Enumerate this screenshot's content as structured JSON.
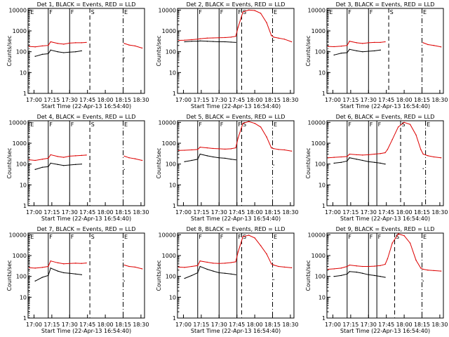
{
  "window": {
    "background": "#ffffff"
  },
  "common": {
    "ylabel": "Counts/sec",
    "xlabel": "Start Time (22-Apr-13 16:54:40)",
    "x_ticks": [
      "17:00",
      "17:15",
      "17:30",
      "17:45",
      "18:00",
      "18:15",
      "18:30"
    ],
    "y_tick_labels": [
      "1",
      "10",
      "100",
      "1000",
      "10000"
    ],
    "colors": {
      "events": "#000000",
      "lld": "#dd0000",
      "marker": "#000000"
    }
  },
  "chart_data": [
    {
      "type": "line",
      "title": "Det 1, BLACK = Events, RED = LLD",
      "x": [
        "16:56",
        "17:01",
        "17:07",
        "17:12",
        "17:14",
        "17:20",
        "17:25",
        "17:30",
        "17:35",
        "17:40",
        "17:44",
        "17:46",
        "17:50",
        "17:55",
        "18:00",
        "18:05",
        "18:10",
        "18:14",
        "18:16",
        "18:20",
        "18:25",
        "18:31"
      ],
      "xlim": [
        "16:55",
        "18:33"
      ],
      "ylim": [
        1,
        12000
      ],
      "y_scale": "log",
      "grid": false,
      "series": [
        {
          "name": "LLD",
          "values": [
            180,
            170,
            190,
            200,
            300,
            250,
            230,
            260,
            270,
            270,
            280,
            null,
            null,
            null,
            null,
            null,
            null,
            null,
            250,
            210,
            190,
            150
          ]
        },
        {
          "name": "Events",
          "values": [
            null,
            60,
            75,
            80,
            120,
            100,
            90,
            95,
            100,
            110,
            null,
            null,
            null,
            null,
            null,
            null,
            null,
            null,
            50,
            null,
            null,
            null
          ]
        }
      ],
      "markers": [
        {
          "label": "E",
          "time": "16:56",
          "style": "dotted"
        },
        {
          "label": "F",
          "time": "17:12",
          "style": "solid"
        },
        {
          "label": "F",
          "time": "17:30",
          "style": "solid"
        },
        {
          "label": "S",
          "time": "17:47",
          "style": "dashed"
        },
        {
          "label": "E",
          "time": "18:15",
          "style": "dash-dot"
        }
      ]
    },
    {
      "type": "line",
      "title": "Det 2, BLACK = Events, RED = LLD",
      "x": [
        "16:56",
        "17:01",
        "17:07",
        "17:12",
        "17:14",
        "17:20",
        "17:25",
        "17:30",
        "17:35",
        "17:40",
        "17:44",
        "17:46",
        "17:50",
        "17:55",
        "18:00",
        "18:05",
        "18:10",
        "18:14",
        "18:16",
        "18:20",
        "18:25",
        "18:31"
      ],
      "xlim": [
        "16:55",
        "18:33"
      ],
      "ylim": [
        1,
        12000
      ],
      "y_scale": "log",
      "grid": false,
      "series": [
        {
          "name": "LLD",
          "values": [
            350,
            360,
            380,
            400,
            420,
            450,
            460,
            470,
            480,
            500,
            550,
            1500,
            8000,
            10000,
            9500,
            7000,
            2500,
            600,
            500,
            450,
            400,
            300
          ]
        },
        {
          "name": "Events",
          "values": [
            null,
            300,
            320,
            320,
            330,
            320,
            310,
            300,
            300,
            290,
            280,
            null,
            null,
            null,
            null,
            null,
            null,
            null,
            350,
            null,
            null,
            null
          ]
        }
      ],
      "markers": [
        {
          "label": "F",
          "time": "17:12",
          "style": "solid"
        },
        {
          "label": "F",
          "time": "17:30",
          "style": "solid"
        },
        {
          "label": "F",
          "time": "17:45",
          "style": "solid"
        },
        {
          "label": "S",
          "time": "17:49",
          "style": "dashed"
        },
        {
          "label": "E",
          "time": "18:15",
          "style": "dash-dot"
        }
      ]
    },
    {
      "type": "line",
      "title": "Det 3, BLACK = Events, RED = LLD",
      "x": [
        "16:56",
        "17:01",
        "17:07",
        "17:12",
        "17:14",
        "17:20",
        "17:25",
        "17:30",
        "17:35",
        "17:40",
        "17:44",
        "17:46",
        "17:50",
        "17:55",
        "18:00",
        "18:05",
        "18:10",
        "18:14",
        "18:16",
        "18:20",
        "18:25",
        "18:31"
      ],
      "xlim": [
        "16:55",
        "18:33"
      ],
      "ylim": [
        1,
        12000
      ],
      "y_scale": "log",
      "grid": false,
      "series": [
        {
          "name": "LLD",
          "values": [
            180,
            175,
            185,
            200,
            320,
            270,
            250,
            270,
            280,
            280,
            300,
            null,
            null,
            null,
            null,
            null,
            null,
            null,
            270,
            220,
            200,
            170
          ]
        },
        {
          "name": "Events",
          "values": [
            null,
            70,
            85,
            90,
            130,
            110,
            100,
            105,
            110,
            120,
            null,
            null,
            null,
            null,
            null,
            null,
            null,
            null,
            70,
            null,
            null,
            null
          ]
        }
      ],
      "markers": [
        {
          "label": "E",
          "time": "16:56",
          "style": "dotted"
        },
        {
          "label": "F",
          "time": "17:12",
          "style": "solid"
        },
        {
          "label": "F",
          "time": "17:30",
          "style": "solid"
        },
        {
          "label": "S",
          "time": "17:47",
          "style": "dashed"
        },
        {
          "label": "E",
          "time": "18:15",
          "style": "dash-dot"
        }
      ]
    },
    {
      "type": "line",
      "title": "Det 4, BLACK = Events, RED = LLD",
      "x": [
        "16:56",
        "17:01",
        "17:07",
        "17:12",
        "17:14",
        "17:20",
        "17:25",
        "17:30",
        "17:35",
        "17:40",
        "17:44",
        "17:46",
        "17:50",
        "17:55",
        "18:00",
        "18:05",
        "18:10",
        "18:14",
        "18:16",
        "18:20",
        "18:25",
        "18:31"
      ],
      "xlim": [
        "16:55",
        "18:33"
      ],
      "ylim": [
        1,
        12000
      ],
      "y_scale": "log",
      "grid": false,
      "series": [
        {
          "name": "LLD",
          "values": [
            160,
            150,
            170,
            190,
            280,
            230,
            210,
            240,
            250,
            260,
            270,
            null,
            null,
            null,
            null,
            null,
            null,
            null,
            240,
            200,
            180,
            150
          ]
        },
        {
          "name": "Events",
          "values": [
            null,
            55,
            70,
            75,
            110,
            95,
            85,
            90,
            95,
            100,
            null,
            null,
            null,
            null,
            null,
            null,
            null,
            null,
            55,
            null,
            null,
            null
          ]
        }
      ],
      "markers": [
        {
          "label": "E",
          "time": "16:56",
          "style": "dotted"
        },
        {
          "label": "F",
          "time": "17:12",
          "style": "solid"
        },
        {
          "label": "F",
          "time": "17:30",
          "style": "solid"
        },
        {
          "label": "S",
          "time": "17:47",
          "style": "dashed"
        },
        {
          "label": "E",
          "time": "18:15",
          "style": "dash-dot"
        }
      ]
    },
    {
      "type": "line",
      "title": "Det 5, BLACK = Events, RED = LLD",
      "x": [
        "16:56",
        "17:01",
        "17:07",
        "17:12",
        "17:14",
        "17:20",
        "17:25",
        "17:30",
        "17:35",
        "17:40",
        "17:44",
        "17:46",
        "17:50",
        "17:55",
        "18:00",
        "18:05",
        "18:10",
        "18:14",
        "18:16",
        "18:20",
        "18:25",
        "18:31"
      ],
      "xlim": [
        "16:55",
        "18:33"
      ],
      "ylim": [
        1,
        12000
      ],
      "y_scale": "log",
      "grid": false,
      "series": [
        {
          "name": "LLD",
          "values": [
            450,
            460,
            480,
            500,
            650,
            600,
            560,
            540,
            520,
            540,
            600,
            1800,
            9000,
            11000,
            9000,
            6000,
            2000,
            600,
            550,
            500,
            480,
            420
          ]
        },
        {
          "name": "Events",
          "values": [
            null,
            130,
            150,
            170,
            300,
            250,
            220,
            200,
            190,
            170,
            160,
            null,
            null,
            null,
            null,
            null,
            null,
            null,
            90,
            null,
            null,
            null
          ]
        }
      ],
      "markers": [
        {
          "label": "F",
          "time": "17:12",
          "style": "solid"
        },
        {
          "label": "F",
          "time": "17:30",
          "style": "solid"
        },
        {
          "label": "F",
          "time": "17:45",
          "style": "solid"
        },
        {
          "label": "S",
          "time": "17:49",
          "style": "dashed"
        },
        {
          "label": "E",
          "time": "18:15",
          "style": "dash-dot"
        }
      ]
    },
    {
      "type": "line",
      "title": "Det 6, BLACK = Events, RED = LLD",
      "x": [
        "16:56",
        "17:01",
        "17:07",
        "17:12",
        "17:14",
        "17:20",
        "17:25",
        "17:30",
        "17:35",
        "17:40",
        "17:44",
        "17:46",
        "17:50",
        "17:55",
        "18:00",
        "18:05",
        "18:10",
        "18:14",
        "18:16",
        "18:20",
        "18:25",
        "18:31"
      ],
      "xlim": [
        "16:55",
        "18:33"
      ],
      "ylim": [
        1,
        12000
      ],
      "y_scale": "log",
      "grid": false,
      "series": [
        {
          "name": "LLD",
          "values": [
            200,
            210,
            220,
            230,
            300,
            280,
            270,
            280,
            300,
            320,
            350,
            500,
            1500,
            6000,
            10000,
            8000,
            2500,
            500,
            300,
            250,
            220,
            200
          ]
        },
        {
          "name": "Events",
          "values": [
            null,
            110,
            120,
            140,
            200,
            170,
            150,
            130,
            120,
            110,
            100,
            null,
            null,
            null,
            null,
            null,
            null,
            null,
            60,
            null,
            null,
            null
          ]
        }
      ],
      "markers": [
        {
          "label": "F",
          "time": "17:12",
          "style": "solid"
        },
        {
          "label": "F",
          "time": "17:30",
          "style": "solid"
        },
        {
          "label": "F",
          "time": "17:37",
          "style": "solid"
        },
        {
          "label": "S",
          "time": "17:57",
          "style": "dashed"
        },
        {
          "label": "E",
          "time": "18:18",
          "style": "dash-dot"
        }
      ]
    },
    {
      "type": "line",
      "title": "Det 7, BLACK = Events, RED = LLD",
      "x": [
        "16:56",
        "17:01",
        "17:07",
        "17:12",
        "17:14",
        "17:20",
        "17:25",
        "17:30",
        "17:35",
        "17:40",
        "17:44",
        "17:46",
        "17:50",
        "17:55",
        "18:00",
        "18:05",
        "18:10",
        "18:14",
        "18:16",
        "18:20",
        "18:25",
        "18:31"
      ],
      "xlim": [
        "16:55",
        "18:33"
      ],
      "ylim": [
        1,
        12000
      ],
      "y_scale": "log",
      "grid": false,
      "series": [
        {
          "name": "LLD",
          "values": [
            260,
            250,
            270,
            300,
            550,
            450,
            400,
            420,
            430,
            420,
            440,
            null,
            null,
            null,
            null,
            null,
            null,
            null,
            350,
            300,
            280,
            230
          ]
        },
        {
          "name": "Events",
          "values": [
            null,
            60,
            90,
            110,
            250,
            180,
            150,
            140,
            130,
            120,
            null,
            null,
            null,
            null,
            null,
            null,
            null,
            null,
            60,
            null,
            null,
            null
          ]
        }
      ],
      "markers": [
        {
          "label": "E",
          "time": "16:56",
          "style": "dotted"
        },
        {
          "label": "F",
          "time": "17:12",
          "style": "solid"
        },
        {
          "label": "F",
          "time": "17:30",
          "style": "solid"
        },
        {
          "label": "S",
          "time": "17:47",
          "style": "dashed"
        },
        {
          "label": "E",
          "time": "18:15",
          "style": "dash-dot"
        }
      ]
    },
    {
      "type": "line",
      "title": "Det 8, BLACK = Events, RED = LLD",
      "x": [
        "16:56",
        "17:01",
        "17:07",
        "17:12",
        "17:14",
        "17:20",
        "17:25",
        "17:30",
        "17:35",
        "17:40",
        "17:44",
        "17:46",
        "17:50",
        "17:55",
        "18:00",
        "18:05",
        "18:10",
        "18:14",
        "18:16",
        "18:20",
        "18:25",
        "18:31"
      ],
      "xlim": [
        "16:55",
        "18:33"
      ],
      "ylim": [
        1,
        12000
      ],
      "y_scale": "log",
      "grid": false,
      "series": [
        {
          "name": "LLD",
          "values": [
            280,
            270,
            300,
            330,
            550,
            480,
            430,
            420,
            430,
            460,
            500,
            1500,
            8000,
            9500,
            7000,
            3000,
            1200,
            400,
            350,
            300,
            280,
            260
          ]
        },
        {
          "name": "Events",
          "values": [
            null,
            80,
            110,
            150,
            300,
            220,
            180,
            150,
            140,
            130,
            120,
            null,
            null,
            null,
            null,
            null,
            null,
            null,
            70,
            null,
            null,
            null
          ]
        }
      ],
      "markers": [
        {
          "label": "F",
          "time": "17:12",
          "style": "solid"
        },
        {
          "label": "F",
          "time": "17:30",
          "style": "solid"
        },
        {
          "label": "F",
          "time": "17:45",
          "style": "solid"
        },
        {
          "label": "S",
          "time": "17:49",
          "style": "dashed"
        },
        {
          "label": "E",
          "time": "18:15",
          "style": "dash-dot"
        }
      ]
    },
    {
      "type": "line",
      "title": "Det 9, BLACK = Events, RED = LLD",
      "x": [
        "16:56",
        "17:01",
        "17:07",
        "17:12",
        "17:14",
        "17:20",
        "17:25",
        "17:30",
        "17:35",
        "17:40",
        "17:44",
        "17:46",
        "17:50",
        "17:55",
        "18:00",
        "18:05",
        "18:10",
        "18:14",
        "18:16",
        "18:20",
        "18:25",
        "18:31"
      ],
      "xlim": [
        "16:55",
        "18:33"
      ],
      "ylim": [
        1,
        12000
      ],
      "y_scale": "log",
      "grid": false,
      "series": [
        {
          "name": "LLD",
          "values": [
            220,
            230,
            250,
            300,
            350,
            320,
            300,
            300,
            310,
            330,
            380,
            700,
            4000,
            11000,
            9000,
            4000,
            600,
            250,
            220,
            200,
            190,
            180
          ]
        },
        {
          "name": "Events",
          "values": [
            null,
            100,
            110,
            130,
            170,
            160,
            140,
            120,
            110,
            100,
            90,
            null,
            null,
            null,
            null,
            null,
            null,
            null,
            60,
            null,
            null,
            null
          ]
        }
      ],
      "markers": [
        {
          "label": "F",
          "time": "17:12",
          "style": "solid"
        },
        {
          "label": "F",
          "time": "17:30",
          "style": "solid"
        },
        {
          "label": "F",
          "time": "17:37",
          "style": "solid"
        },
        {
          "label": "S",
          "time": "17:52",
          "style": "dashed"
        },
        {
          "label": "E",
          "time": "18:15",
          "style": "dash-dot"
        }
      ]
    }
  ]
}
